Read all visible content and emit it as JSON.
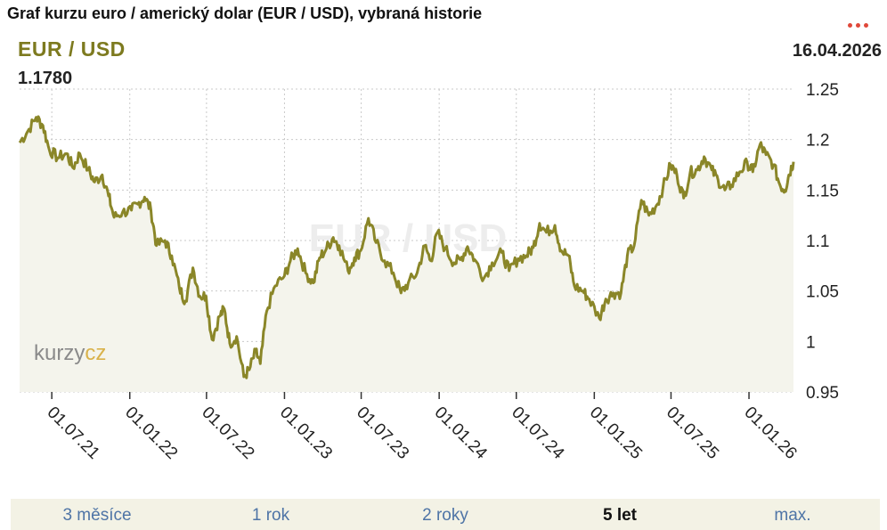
{
  "header": {
    "title": "Graf kurzu euro / americký dolar (EUR / USD), vybraná historie",
    "pair": "EUR / USD",
    "date": "16.04.2026",
    "current_value": "1.1780",
    "watermark_text": "EUR / USD",
    "logo_text_part1": "kurzy",
    "logo_text_part2": "cz"
  },
  "tabs": [
    {
      "label": "3 měsíce",
      "active": false
    },
    {
      "label": "1 rok",
      "active": false
    },
    {
      "label": "2 roky",
      "active": false
    },
    {
      "label": "5 let",
      "active": true
    },
    {
      "label": "max.",
      "active": false
    }
  ],
  "colors": {
    "line": "#8a8628",
    "pair_text": "#7d7a1f",
    "area_fill": "#f4f4ec",
    "grid": "#c9c9c9",
    "menu_dots": "#e0483a",
    "tab_link": "#4e74a6"
  },
  "chart_data": {
    "type": "line",
    "title": "",
    "xlabel": "",
    "ylabel": "",
    "ylim": [
      0.95,
      1.25
    ],
    "yticks": [
      0.95,
      1,
      1.05,
      1.1,
      1.15,
      1.2,
      1.25
    ],
    "ytick_labels": [
      "0.95",
      "1",
      "1.05",
      "1.1",
      "1.15",
      "1.2",
      "1.25"
    ],
    "xlim": [
      "2021-04-16",
      "2026-04-16"
    ],
    "xticks": [
      "2021-07-01",
      "2022-01-01",
      "2022-07-01",
      "2023-01-01",
      "2023-07-01",
      "2024-01-01",
      "2024-07-01",
      "2025-01-01",
      "2025-07-01",
      "2026-01-01"
    ],
    "xtick_labels": [
      "01.07.21",
      "01.01.22",
      "01.07.22",
      "01.01.23",
      "01.07.23",
      "01.01.24",
      "01.07.24",
      "01.01.25",
      "01.07.25",
      "01.01.26"
    ],
    "grid": true,
    "series": [
      {
        "points": [
          [
            "2021-04-16",
            1.197
          ],
          [
            "2021-05-05",
            1.208
          ],
          [
            "2021-05-25",
            1.222
          ],
          [
            "2021-06-10",
            1.214
          ],
          [
            "2021-06-25",
            1.19
          ],
          [
            "2021-07-15",
            1.182
          ],
          [
            "2021-08-05",
            1.186
          ],
          [
            "2021-08-20",
            1.172
          ],
          [
            "2021-09-05",
            1.186
          ],
          [
            "2021-09-25",
            1.17
          ],
          [
            "2021-10-10",
            1.158
          ],
          [
            "2021-10-28",
            1.165
          ],
          [
            "2021-11-12",
            1.144
          ],
          [
            "2021-11-25",
            1.123
          ],
          [
            "2021-12-15",
            1.128
          ],
          [
            "2022-01-05",
            1.13
          ],
          [
            "2022-01-20",
            1.136
          ],
          [
            "2022-02-05",
            1.143
          ],
          [
            "2022-02-20",
            1.13
          ],
          [
            "2022-03-05",
            1.095
          ],
          [
            "2022-03-25",
            1.1
          ],
          [
            "2022-04-10",
            1.085
          ],
          [
            "2022-04-28",
            1.053
          ],
          [
            "2022-05-12",
            1.04
          ],
          [
            "2022-05-30",
            1.073
          ],
          [
            "2022-06-15",
            1.045
          ],
          [
            "2022-06-30",
            1.045
          ],
          [
            "2022-07-14",
            1.002
          ],
          [
            "2022-08-01",
            1.025
          ],
          [
            "2022-08-12",
            1.032
          ],
          [
            "2022-08-25",
            0.998
          ],
          [
            "2022-09-10",
            1.005
          ],
          [
            "2022-09-27",
            0.965
          ],
          [
            "2022-10-10",
            0.972
          ],
          [
            "2022-10-25",
            0.99
          ],
          [
            "2022-11-05",
            0.978
          ],
          [
            "2022-11-20",
            1.03
          ],
          [
            "2022-12-10",
            1.055
          ],
          [
            "2023-01-01",
            1.065
          ],
          [
            "2023-01-15",
            1.08
          ],
          [
            "2023-02-01",
            1.092
          ],
          [
            "2023-02-20",
            1.068
          ],
          [
            "2023-03-10",
            1.058
          ],
          [
            "2023-03-25",
            1.083
          ],
          [
            "2023-04-10",
            1.092
          ],
          [
            "2023-04-26",
            1.103
          ],
          [
            "2023-05-10",
            1.095
          ],
          [
            "2023-05-31",
            1.07
          ],
          [
            "2023-06-15",
            1.083
          ],
          [
            "2023-06-30",
            1.09
          ],
          [
            "2023-07-18",
            1.122
          ],
          [
            "2023-08-05",
            1.098
          ],
          [
            "2023-08-25",
            1.08
          ],
          [
            "2023-09-15",
            1.068
          ],
          [
            "2023-10-03",
            1.048
          ],
          [
            "2023-10-20",
            1.058
          ],
          [
            "2023-11-10",
            1.068
          ],
          [
            "2023-11-28",
            1.095
          ],
          [
            "2023-12-12",
            1.08
          ],
          [
            "2023-12-28",
            1.108
          ],
          [
            "2024-01-15",
            1.092
          ],
          [
            "2024-02-05",
            1.078
          ],
          [
            "2024-02-20",
            1.081
          ],
          [
            "2024-03-08",
            1.094
          ],
          [
            "2024-03-25",
            1.081
          ],
          [
            "2024-04-16",
            1.063
          ],
          [
            "2024-05-05",
            1.078
          ],
          [
            "2024-05-28",
            1.088
          ],
          [
            "2024-06-14",
            1.07
          ],
          [
            "2024-07-05",
            1.082
          ],
          [
            "2024-07-25",
            1.085
          ],
          [
            "2024-08-10",
            1.093
          ],
          [
            "2024-08-25",
            1.117
          ],
          [
            "2024-09-10",
            1.108
          ],
          [
            "2024-09-30",
            1.115
          ],
          [
            "2024-10-15",
            1.09
          ],
          [
            "2024-11-01",
            1.085
          ],
          [
            "2024-11-15",
            1.055
          ],
          [
            "2024-12-05",
            1.05
          ],
          [
            "2024-12-20",
            1.042
          ],
          [
            "2025-01-13",
            1.023
          ],
          [
            "2025-01-28",
            1.042
          ],
          [
            "2025-02-15",
            1.048
          ],
          [
            "2025-03-05",
            1.048
          ],
          [
            "2025-03-20",
            1.085
          ],
          [
            "2025-04-05",
            1.095
          ],
          [
            "2025-04-22",
            1.14
          ],
          [
            "2025-05-10",
            1.125
          ],
          [
            "2025-05-28",
            1.135
          ],
          [
            "2025-06-12",
            1.152
          ],
          [
            "2025-06-30",
            1.175
          ],
          [
            "2025-07-15",
            1.165
          ],
          [
            "2025-07-31",
            1.142
          ],
          [
            "2025-08-15",
            1.167
          ],
          [
            "2025-09-01",
            1.17
          ],
          [
            "2025-09-17",
            1.183
          ],
          [
            "2025-10-05",
            1.17
          ],
          [
            "2025-10-20",
            1.16
          ],
          [
            "2025-11-05",
            1.15
          ],
          [
            "2025-11-20",
            1.155
          ],
          [
            "2025-12-10",
            1.168
          ],
          [
            "2025-12-28",
            1.177
          ],
          [
            "2026-01-10",
            1.168
          ],
          [
            "2026-01-27",
            1.195
          ],
          [
            "2026-02-10",
            1.185
          ],
          [
            "2026-02-28",
            1.175
          ],
          [
            "2026-03-15",
            1.155
          ],
          [
            "2026-03-27",
            1.15
          ],
          [
            "2026-04-05",
            1.165
          ],
          [
            "2026-04-16",
            1.178
          ]
        ]
      }
    ]
  }
}
